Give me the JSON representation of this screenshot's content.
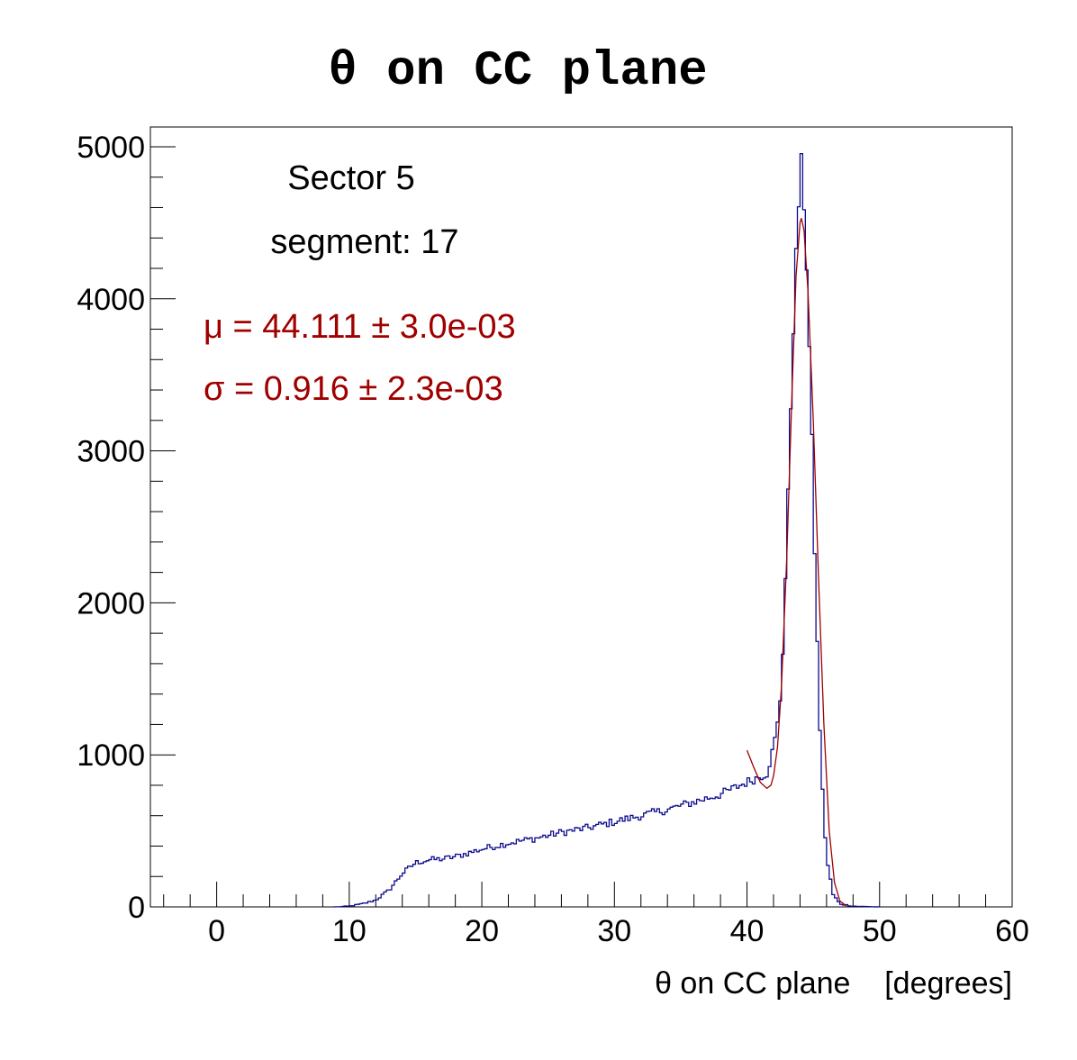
{
  "chart_data": {
    "type": "histogram",
    "title": "θ on CC plane",
    "xlabel": "θ on CC plane    [degrees]",
    "ylabel": "",
    "xlim": [
      -5,
      60
    ],
    "ylim": [
      0,
      5130
    ],
    "x_ticks": [
      0,
      10,
      20,
      30,
      40,
      50,
      60
    ],
    "y_ticks": [
      0,
      1000,
      2000,
      3000,
      4000,
      5000
    ],
    "grid": false,
    "annotations": {
      "sector": "Sector 5",
      "segment": "segment: 17",
      "mu": "μ = 44.111 ± 3.0e-03",
      "sigma": "σ = 0.916 ± 2.3e-03"
    },
    "colors": {
      "histogram": "#0a0a8c",
      "fit": "#a00000",
      "annotation_fit": "#a00000",
      "text": "#000000"
    },
    "bin_width": 0.2,
    "series": [
      {
        "kind": "histogram",
        "points": [
          [
            9.0,
            0
          ],
          [
            10.0,
            5
          ],
          [
            11.0,
            20
          ],
          [
            12.0,
            45
          ],
          [
            13.0,
            110
          ],
          [
            14.0,
            220
          ],
          [
            15.0,
            290
          ],
          [
            16.0,
            310
          ],
          [
            17.0,
            315
          ],
          [
            18.0,
            330
          ],
          [
            19.0,
            355
          ],
          [
            20.0,
            380
          ],
          [
            22.0,
            420
          ],
          [
            24.0,
            450
          ],
          [
            26.0,
            490
          ],
          [
            28.0,
            520
          ],
          [
            30.0,
            560
          ],
          [
            32.0,
            600
          ],
          [
            34.0,
            640
          ],
          [
            36.0,
            690
          ],
          [
            38.0,
            740
          ],
          [
            40.0,
            820
          ],
          [
            41.5,
            880
          ],
          [
            42.0,
            1050
          ],
          [
            42.3,
            1200
          ],
          [
            42.6,
            1450
          ],
          [
            43.0,
            2400
          ],
          [
            43.4,
            3600
          ],
          [
            43.8,
            4500
          ],
          [
            44.1,
            4880
          ],
          [
            44.4,
            4500
          ],
          [
            44.8,
            3400
          ],
          [
            45.2,
            2000
          ],
          [
            45.6,
            900
          ],
          [
            46.0,
            320
          ],
          [
            46.5,
            80
          ],
          [
            47.0,
            20
          ],
          [
            48.0,
            5
          ],
          [
            49.0,
            2
          ],
          [
            50.0,
            0
          ]
        ]
      },
      {
        "kind": "fit",
        "mu": 44.111,
        "sigma": 0.916,
        "x_range": [
          40.0,
          47.5
        ],
        "points": [
          [
            40.0,
            1030
          ],
          [
            40.5,
            920
          ],
          [
            41.0,
            820
          ],
          [
            41.5,
            780
          ],
          [
            41.8,
            800
          ],
          [
            42.0,
            860
          ],
          [
            42.3,
            1050
          ],
          [
            42.6,
            1450
          ],
          [
            43.0,
            2300
          ],
          [
            43.4,
            3400
          ],
          [
            43.7,
            4150
          ],
          [
            44.0,
            4500
          ],
          [
            44.1,
            4530
          ],
          [
            44.3,
            4450
          ],
          [
            44.6,
            4050
          ],
          [
            45.0,
            3200
          ],
          [
            45.4,
            2150
          ],
          [
            45.8,
            1200
          ],
          [
            46.2,
            500
          ],
          [
            46.6,
            160
          ],
          [
            47.0,
            40
          ],
          [
            47.5,
            5
          ]
        ]
      }
    ]
  }
}
